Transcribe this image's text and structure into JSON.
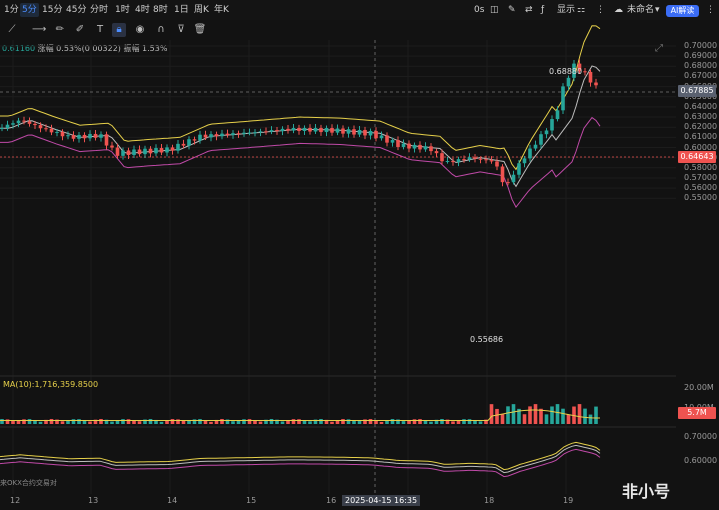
{
  "topbar": {
    "timeframes": [
      "1分",
      "5分",
      "15分",
      "45分",
      "分时",
      "1时",
      "4时",
      "8时",
      "1日",
      "周K",
      "年K"
    ],
    "active_timeframe": "5分",
    "countdown": "0s",
    "display_label": "显示",
    "login_label": "未命名",
    "ai_label": "AI解读"
  },
  "info": {
    "price": "0.61160",
    "change_label": "涨幅 0.53%(0.00322)",
    "amplitude_label": "振幅 1.53%"
  },
  "price_axis": [
    "0.70000",
    "0.69000",
    "0.68000",
    "0.67000",
    "0.66000",
    "0.65000",
    "0.64000",
    "0.63000",
    "0.62000",
    "0.61000",
    "0.60000",
    "0.59000",
    "0.58000",
    "0.57000",
    "0.56000",
    "0.55000"
  ],
  "price_tags": {
    "crosshair": "0.67885",
    "last": "0.64643"
  },
  "annotations": {
    "high": "0.68880",
    "low": "0.55686"
  },
  "volume": {
    "ma_label": "MA(10):1,716,359.8500",
    "axis": [
      "20.00M",
      "10.00M"
    ],
    "tag": "5.7M"
  },
  "indicator_axis": [
    "0.70000",
    "0.60000"
  ],
  "dates": [
    "12",
    "13",
    "14",
    "15",
    "16",
    "17",
    "18",
    "19"
  ],
  "crosshair_date": "2025-04-15 16:35",
  "source_label": "来OKX合约交易对",
  "watermark": "非小号",
  "colors": {
    "up": "#26a69a",
    "down": "#ef5350",
    "upper_band": "#e6d04a",
    "mid_band": "#bdbdbd",
    "lower_band": "#c04aa8",
    "accent": "#3b6df6"
  }
}
